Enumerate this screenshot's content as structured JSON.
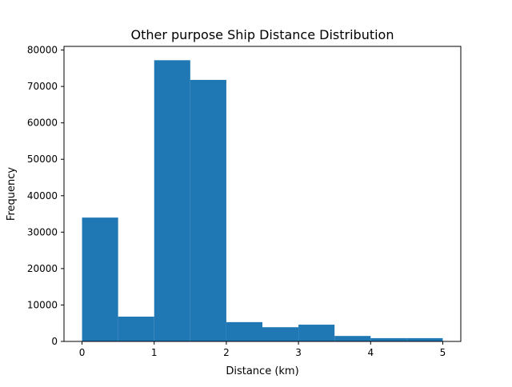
{
  "chart_data": {
    "type": "bar",
    "title": "Other purpose Ship Distance Distribution",
    "xlabel": "Distance (km)",
    "ylabel": "Frequency",
    "bin_edges": [
      0,
      0.5,
      1,
      1.5,
      2,
      2.5,
      3,
      3.5,
      4,
      4.5,
      5
    ],
    "values": [
      34000,
      6800,
      77200,
      71800,
      5300,
      3900,
      4600,
      1500,
      900,
      900
    ],
    "xlim": [
      -0.25,
      5.25
    ],
    "ylim": [
      0,
      81000
    ],
    "xticks": [
      0,
      1,
      2,
      3,
      4,
      5
    ],
    "xtick_labels": [
      "0",
      "1",
      "2",
      "3",
      "4",
      "5"
    ],
    "yticks": [
      0,
      10000,
      20000,
      30000,
      40000,
      50000,
      60000,
      70000,
      80000
    ],
    "ytick_labels": [
      "0",
      "10000",
      "20000",
      "30000",
      "40000",
      "50000",
      "60000",
      "70000",
      "80000"
    ],
    "grid": false,
    "legend": "none",
    "bar_color": "#1f77b4"
  }
}
